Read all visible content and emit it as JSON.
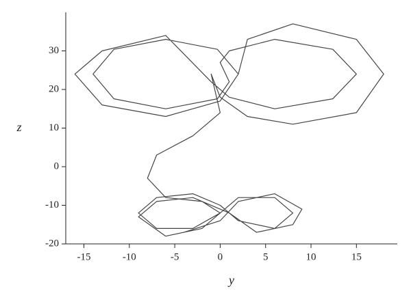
{
  "chart_data": {
    "type": "line",
    "x_label": "y",
    "y_label": "z",
    "x": [
      2,
      -0.3,
      -6,
      -11.7,
      -14,
      -11.7,
      -6,
      -0.3,
      1,
      0,
      1,
      6,
      12.4,
      15,
      12.4,
      6,
      1,
      -1,
      -6,
      -13,
      -16,
      -13,
      -6,
      0,
      2,
      3,
      8,
      15,
      18,
      15,
      8,
      3,
      0,
      -1,
      0,
      -3,
      -7,
      -8,
      -6,
      -2,
      0,
      -3,
      -7,
      -9,
      -7,
      -3,
      0,
      2,
      6,
      8,
      6,
      2,
      0,
      -2,
      -6,
      -9,
      -7,
      -3,
      1,
      4,
      8,
      9,
      6,
      2,
      0,
      -4
    ],
    "values": [
      24,
      30.4,
      33,
      30.4,
      24,
      17.6,
      15,
      17.6,
      22,
      27,
      30,
      33,
      30.4,
      24,
      17.6,
      15,
      18,
      22,
      34,
      30,
      24,
      16,
      13,
      17,
      24,
      33,
      37,
      33,
      24,
      14,
      11,
      13,
      18,
      24,
      14,
      8,
      3,
      -3,
      -8,
      -9,
      -12,
      -16,
      -16,
      -12,
      -8,
      -7,
      -10,
      -14,
      -16,
      -12,
      -8,
      -8,
      -12,
      -16,
      -18,
      -13,
      -9,
      -8,
      -12,
      -17,
      -15,
      -11,
      -7,
      -9,
      -14,
      -17
    ],
    "color": "#444444",
    "xlim": [
      -17,
      19.5
    ],
    "ylim": [
      -20,
      40
    ],
    "xticks": [
      -15,
      -10,
      -5,
      0,
      5,
      10,
      15
    ],
    "yticks": [
      -20,
      -10,
      0,
      10,
      20,
      30
    ]
  }
}
